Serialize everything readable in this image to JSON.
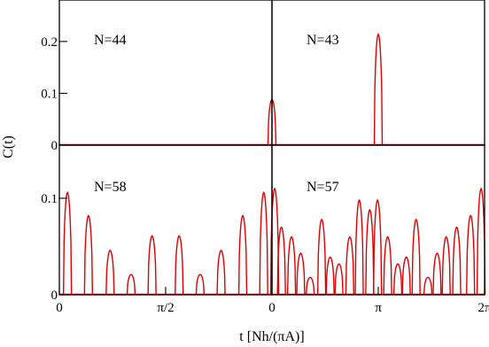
{
  "chart_data": {
    "type": "line",
    "xlabel": "t [Nh/(πA)]",
    "ylabel": "C(t)",
    "series_color": "#dd0000",
    "grid": false,
    "panels": [
      {
        "id": "top-left",
        "label": "N=44",
        "xlim": [
          0,
          1.5708
        ],
        "ylim": [
          0,
          0.28
        ],
        "xticks": [],
        "yticks": [
          {
            "value": 0,
            "label": "0"
          },
          {
            "value": 0.1,
            "label": "0.1"
          },
          {
            "value": 0.2,
            "label": "0.2"
          }
        ],
        "peaks": [
          {
            "x": 1.5708,
            "y": 0.088
          }
        ]
      },
      {
        "id": "top-right",
        "label": "N=43",
        "xlim": [
          0,
          3.1416
        ],
        "ylim": [
          0,
          0.28
        ],
        "xticks": [],
        "yticks": [],
        "peaks": [
          {
            "x": 1.5708,
            "y": 0.214
          }
        ]
      },
      {
        "id": "bottom-left",
        "label": "N=58",
        "xlim": [
          0,
          3.1416
        ],
        "ylim": [
          0,
          0.155
        ],
        "xticks": [
          {
            "value": 0,
            "label": "0"
          },
          {
            "value": 1.5708,
            "label": "π/2"
          }
        ],
        "yticks": [
          {
            "value": 0,
            "label": "0"
          },
          {
            "value": 0.1,
            "label": "0.1"
          }
        ],
        "peaks": [
          {
            "x": 0.12,
            "y": 0.106
          },
          {
            "x": 0.43,
            "y": 0.082
          },
          {
            "x": 0.75,
            "y": 0.046
          },
          {
            "x": 1.06,
            "y": 0.021
          },
          {
            "x": 1.37,
            "y": 0.061
          },
          {
            "x": 1.77,
            "y": 0.061
          },
          {
            "x": 2.08,
            "y": 0.021
          },
          {
            "x": 2.39,
            "y": 0.046
          },
          {
            "x": 2.71,
            "y": 0.082
          },
          {
            "x": 3.02,
            "y": 0.106
          }
        ]
      },
      {
        "id": "bottom-right",
        "label": "N=57",
        "xlim": [
          0,
          6.2832
        ],
        "ylim": [
          0,
          0.155
        ],
        "xticks": [
          {
            "value": 0,
            "label": "0"
          },
          {
            "value": 3.1416,
            "label": "π"
          },
          {
            "value": 6.2832,
            "label": "2π"
          }
        ],
        "yticks": [],
        "peaks": [
          {
            "x": 0.08,
            "y": 0.11
          },
          {
            "x": 0.28,
            "y": 0.07
          },
          {
            "x": 0.58,
            "y": 0.06
          },
          {
            "x": 0.85,
            "y": 0.043
          },
          {
            "x": 1.13,
            "y": 0.018
          },
          {
            "x": 1.47,
            "y": 0.078
          },
          {
            "x": 1.72,
            "y": 0.039
          },
          {
            "x": 1.98,
            "y": 0.032
          },
          {
            "x": 2.3,
            "y": 0.06
          },
          {
            "x": 2.58,
            "y": 0.098
          },
          {
            "x": 2.89,
            "y": 0.088
          },
          {
            "x": 3.12,
            "y": 0.098
          },
          {
            "x": 3.42,
            "y": 0.06
          },
          {
            "x": 3.72,
            "y": 0.032
          },
          {
            "x": 3.97,
            "y": 0.039
          },
          {
            "x": 4.26,
            "y": 0.078
          },
          {
            "x": 4.61,
            "y": 0.018
          },
          {
            "x": 4.88,
            "y": 0.043
          },
          {
            "x": 5.15,
            "y": 0.06
          },
          {
            "x": 5.46,
            "y": 0.07
          },
          {
            "x": 5.87,
            "y": 0.082
          },
          {
            "x": 6.18,
            "y": 0.11
          }
        ]
      }
    ]
  }
}
